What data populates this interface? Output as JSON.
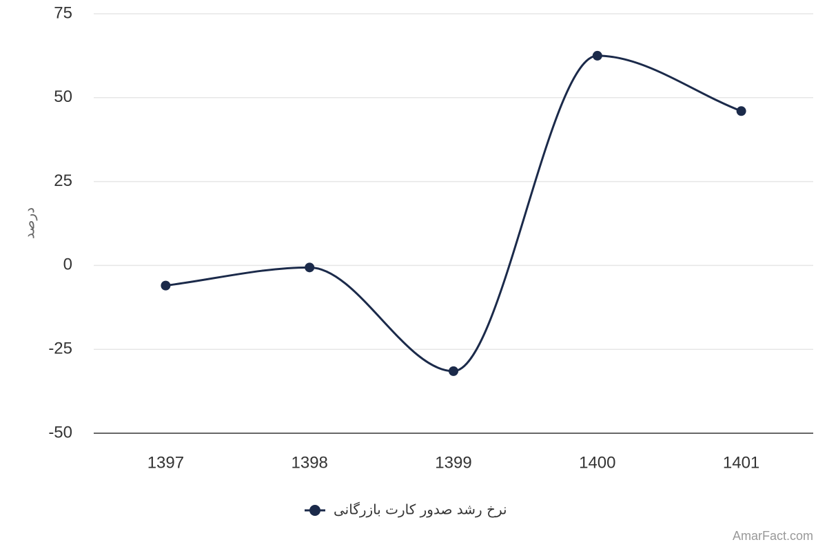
{
  "chart_data": {
    "type": "line",
    "title": "",
    "xlabel": "",
    "ylabel": "درصد",
    "categories": [
      "1397",
      "1398",
      "1399",
      "1400",
      "1401"
    ],
    "series": [
      {
        "name": "نرخ رشد صدور کارت بازرگانی",
        "values": [
          -6,
          -0.6,
          -31.5,
          62.5,
          46
        ],
        "color": "#1b2a4a"
      }
    ],
    "ylim": [
      -50,
      75
    ],
    "yticks": [
      "75",
      "50",
      "25",
      "0",
      "-25",
      "-50"
    ],
    "grid": true,
    "smooth": true,
    "legend": "bottom-center"
  },
  "credit": "AmarFact.com"
}
